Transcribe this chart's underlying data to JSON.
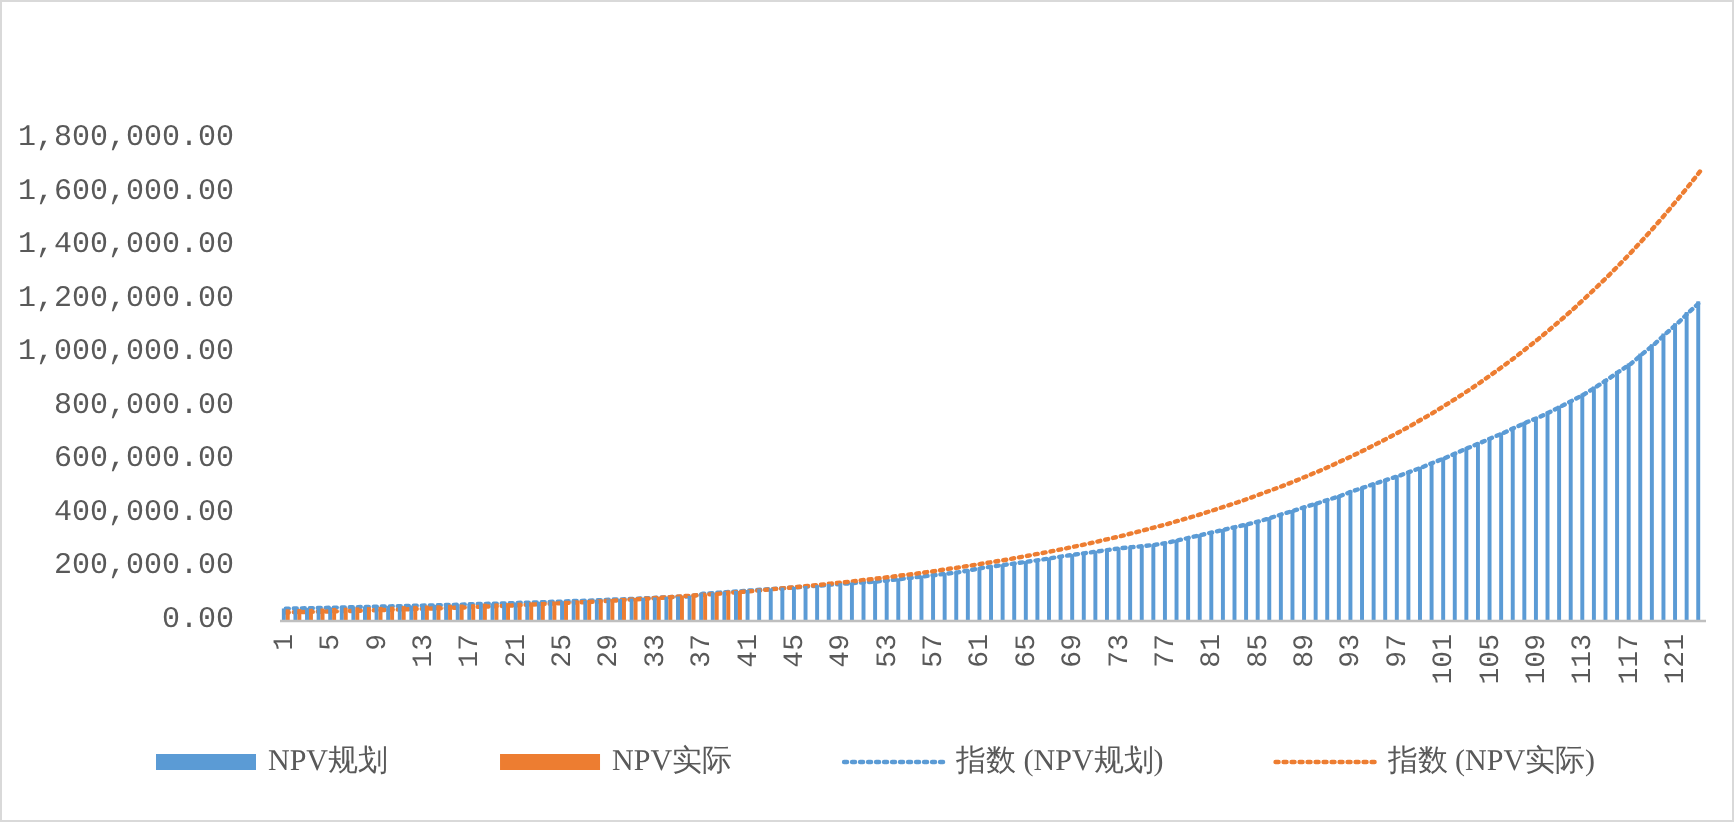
{
  "chart_data": {
    "type": "bar",
    "categories": [
      "1",
      null,
      null,
      null,
      "5",
      null,
      null,
      null,
      "9",
      null,
      null,
      null,
      "13",
      null,
      null,
      null,
      "17",
      null,
      null,
      null,
      "21",
      null,
      null,
      null,
      "25",
      null,
      null,
      null,
      "29",
      null,
      null,
      null,
      "33",
      null,
      null,
      null,
      "37",
      null,
      null,
      null,
      "41",
      null,
      null,
      null,
      "45",
      null,
      null,
      null,
      "49",
      null,
      null,
      null,
      "53",
      null,
      null,
      null,
      "57",
      null,
      null,
      null,
      "61",
      null,
      null,
      null,
      "65",
      null,
      null,
      null,
      "69",
      null,
      null,
      null,
      "73",
      null,
      null,
      null,
      "77",
      null,
      null,
      null,
      "81",
      null,
      null,
      null,
      "85",
      null,
      null,
      null,
      "89",
      null,
      null,
      null,
      "93",
      null,
      null,
      null,
      "97",
      null,
      null,
      null,
      "101",
      null,
      null,
      null,
      "105",
      null,
      null,
      null,
      "109",
      null,
      null,
      null,
      "113",
      null,
      null,
      null,
      "117",
      null,
      null,
      null,
      "121",
      null,
      null
    ],
    "series": [
      {
        "name": "NPV规划",
        "color": "#5b9bd5",
        "values": [
          43000,
          44000,
          45000,
          46000,
          47000,
          48000,
          49000,
          50000,
          51000,
          52000,
          53000,
          54000,
          55000,
          56000,
          57000,
          58000,
          60000,
          61000,
          62000,
          63000,
          65000,
          66000,
          67000,
          69000,
          70000,
          72000,
          73000,
          75000,
          77000,
          78000,
          80000,
          82000,
          84000,
          86000,
          88000,
          90000,
          100000,
          103000,
          106000,
          109000,
          112000,
          115000,
          118000,
          121000,
          124000,
          127000,
          130000,
          134000,
          137000,
          140000,
          143000,
          146000,
          150000,
          155000,
          160000,
          165000,
          170000,
          175000,
          180000,
          188000,
          196000,
          202000,
          208000,
          214000,
          220000,
          226000,
          233000,
          240000,
          246000,
          252000,
          258000,
          264000,
          270000,
          274000,
          278000,
          283000,
          290000,
          300000,
          310000,
          320000,
          330000,
          340000,
          350000,
          360000,
          371000,
          384000,
          398000,
          411000,
          425000,
          438000,
          452000,
          466000,
          483000,
          497000,
          512000,
          526000,
          540000,
          556000,
          572000,
          590000,
          607000,
          626000,
          645000,
          663000,
          682000,
          700000,
          720000,
          740000,
          757000,
          778000,
          800000,
          822000,
          845000,
          872000,
          900000,
          930000,
          958000,
          995000,
          1030000,
          1070000,
          1108000,
          1150000,
          1190000
        ]
      },
      {
        "name": "NPV实际",
        "color": "#ed7d31",
        "values": [
          40000,
          41000,
          42000,
          43000,
          45000,
          46000,
          47000,
          48000,
          49000,
          50000,
          52000,
          53000,
          54000,
          55000,
          57000,
          58000,
          59000,
          61000,
          62000,
          63000,
          65000,
          66000,
          67000,
          69000,
          70000,
          72000,
          74000,
          76000,
          78000,
          80000,
          82000,
          84000,
          86000,
          88000,
          90000,
          92000,
          95000,
          100000,
          110000,
          108000,
          null,
          null,
          null,
          null,
          null,
          null,
          null,
          null,
          null,
          null,
          null,
          null,
          null,
          null,
          null,
          null,
          null,
          null,
          null,
          null,
          null,
          null,
          null,
          null,
          null,
          null,
          null,
          null,
          null,
          null,
          null,
          null,
          null,
          null,
          null,
          null,
          null,
          null,
          null,
          null,
          null,
          null,
          null,
          null,
          null,
          null,
          null,
          null,
          null,
          null,
          null,
          null,
          null,
          null,
          null,
          null,
          null,
          null,
          null,
          null,
          null,
          null,
          null,
          null,
          null,
          null,
          null,
          null,
          null,
          null,
          null,
          null,
          null,
          null,
          null,
          null,
          null,
          null,
          null,
          null,
          null,
          null,
          null
        ]
      },
      {
        "name": "指数 (NPV规划)",
        "type": "line",
        "line_style": "dotted",
        "color": "#5b9bd5",
        "values": [
          42000,
          43000,
          44000,
          45000,
          46000,
          47000,
          48000,
          49000,
          50000,
          51000,
          52000,
          53000,
          54000,
          55000,
          56000,
          57000,
          59000,
          60000,
          61000,
          62000,
          64000,
          65000,
          66000,
          68000,
          69000,
          71000,
          72000,
          74000,
          76000,
          77000,
          79000,
          81000,
          83000,
          85000,
          87000,
          89000,
          98000,
          101000,
          104000,
          107000,
          110000,
          113000,
          116000,
          119000,
          122000,
          125000,
          128000,
          132000,
          135000,
          138000,
          141000,
          144000,
          148000,
          153000,
          158000,
          163000,
          168000,
          173000,
          178000,
          186000,
          194000,
          200000,
          206000,
          212000,
          218000,
          224000,
          231000,
          238000,
          244000,
          250000,
          256000,
          262000,
          268000,
          272000,
          276000,
          281000,
          288000,
          298000,
          308000,
          318000,
          328000,
          338000,
          348000,
          358000,
          369000,
          382000,
          396000,
          409000,
          423000,
          436000,
          450000,
          464000,
          481000,
          495000,
          510000,
          524000,
          538000,
          554000,
          570000,
          588000,
          605000,
          624000,
          643000,
          661000,
          680000,
          698000,
          718000,
          738000,
          755000,
          776000,
          798000,
          820000,
          843000,
          870000,
          898000,
          928000,
          956000,
          993000,
          1028000,
          1068000,
          1106000,
          1148000,
          1188000
        ]
      },
      {
        "name": "指数 (NPV实际)",
        "type": "line",
        "line_style": "dotted",
        "color": "#ed7d31",
        "values": [
          28000,
          29000,
          30000,
          31000,
          32000,
          33000,
          34000,
          35000,
          37000,
          38000,
          39000,
          41000,
          42000,
          43000,
          45000,
          46000,
          48000,
          50000,
          51000,
          53000,
          55000,
          57000,
          59000,
          61000,
          63000,
          65000,
          67000,
          69000,
          72000,
          74000,
          77000,
          79000,
          82000,
          85000,
          88000,
          91000,
          94000,
          97000,
          100000,
          104000,
          107000,
          111000,
          115000,
          119000,
          123000,
          127000,
          131000,
          136000,
          140000,
          145000,
          150000,
          155000,
          160000,
          166000,
          171000,
          177000,
          183000,
          190000,
          196000,
          203000,
          210000,
          217000,
          224000,
          232000,
          240000,
          248000,
          256000,
          265000,
          274000,
          283000,
          293000,
          303000,
          313000,
          324000,
          335000,
          347000,
          358000,
          371000,
          383000,
          396000,
          410000,
          424000,
          438000,
          453000,
          469000,
          485000,
          501000,
          518000,
          536000,
          554000,
          573000,
          593000,
          613000,
          634000,
          656000,
          678000,
          701000,
          725000,
          750000,
          775000,
          802000,
          829000,
          857000,
          886000,
          917000,
          948000,
          980000,
          1014000,
          1048000,
          1084000,
          1121000,
          1159000,
          1199000,
          1240000,
          1282000,
          1326000,
          1371000,
          1418000,
          1466000,
          1516000,
          1568000,
          1621000,
          1676000
        ]
      }
    ],
    "ylim": [
      0,
      1800000
    ],
    "yticks": [
      {
        "value": 0,
        "label": "0.00"
      },
      {
        "value": 200000,
        "label": "200,000.00"
      },
      {
        "value": 400000,
        "label": "400,000.00"
      },
      {
        "value": 600000,
        "label": "600,000.00"
      },
      {
        "value": 800000,
        "label": "800,000.00"
      },
      {
        "value": 1000000,
        "label": "1,000,000.00"
      },
      {
        "value": 1200000,
        "label": "1,200,000.00"
      },
      {
        "value": 1400000,
        "label": "1,400,000.00"
      },
      {
        "value": 1600000,
        "label": "1,600,000.00"
      },
      {
        "value": 1800000,
        "label": "1,800,000.00"
      }
    ],
    "grid": false,
    "legend": "bottom",
    "marker": "none"
  }
}
